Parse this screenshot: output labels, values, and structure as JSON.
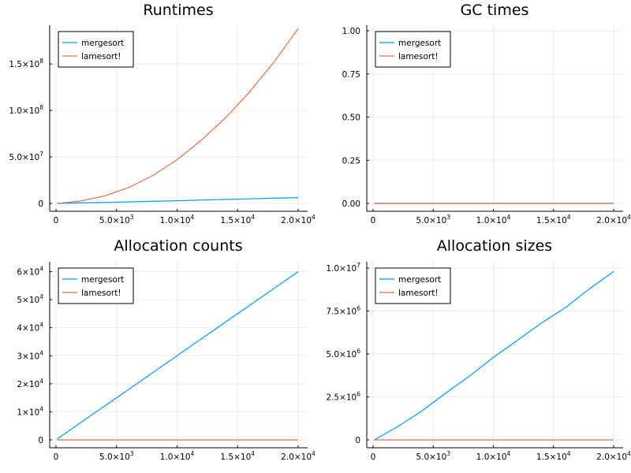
{
  "colors": {
    "mergesort": "#009af9",
    "lamesort": "#e26f46"
  },
  "chart_data": [
    {
      "type": "line",
      "title": "Runtimes",
      "xlabel": "",
      "ylabel": "",
      "xlim": [
        0,
        20000
      ],
      "ylim": [
        0,
        190000000
      ],
      "grid": true,
      "legend_position": "top-left",
      "xticks": [
        {
          "v": 0,
          "m": "0",
          "e": ""
        },
        {
          "v": 5000,
          "m": "5.0×10",
          "e": "3"
        },
        {
          "v": 10000,
          "m": "1.0×10",
          "e": "4"
        },
        {
          "v": 15000,
          "m": "1.5×10",
          "e": "4"
        },
        {
          "v": 20000,
          "m": "2.0×10",
          "e": "4"
        }
      ],
      "yticks": [
        {
          "v": 0,
          "m": "0",
          "e": ""
        },
        {
          "v": 50000000,
          "m": "5.0×10",
          "e": "7"
        },
        {
          "v": 100000000,
          "m": "1.0×10",
          "e": "8"
        },
        {
          "v": 150000000,
          "m": "1.5×10",
          "e": "8"
        }
      ],
      "series": [
        {
          "name": "mergesort",
          "color": "#009af9",
          "x": [
            100,
            2000,
            4000,
            6000,
            8000,
            10000,
            12000,
            14000,
            16000,
            18000,
            20000
          ],
          "y": [
            0,
            500000,
            1000000,
            1600000,
            2200000,
            2900000,
            3600000,
            4200000,
            4900000,
            5600000,
            6300000
          ]
        },
        {
          "name": "lamesort!",
          "color": "#e26f46",
          "x": [
            100,
            2000,
            4000,
            6000,
            8000,
            10000,
            12000,
            14000,
            16000,
            18000,
            20000
          ],
          "y": [
            0,
            2500000,
            8000000,
            17000000,
            30000000,
            47000000,
            68000000,
            92000000,
            120000000,
            152000000,
            188000000
          ]
        }
      ]
    },
    {
      "type": "line",
      "title": "GC times",
      "xlabel": "",
      "ylabel": "",
      "xlim": [
        0,
        20000
      ],
      "ylim": [
        0,
        1
      ],
      "grid": true,
      "legend_position": "top-left",
      "xticks": [
        {
          "v": 0,
          "m": "0",
          "e": ""
        },
        {
          "v": 5000,
          "m": "5.0×10",
          "e": "3"
        },
        {
          "v": 10000,
          "m": "1.0×10",
          "e": "4"
        },
        {
          "v": 15000,
          "m": "1.5×10",
          "e": "4"
        },
        {
          "v": 20000,
          "m": "2.0×10",
          "e": "4"
        }
      ],
      "yticks": [
        {
          "v": 0,
          "m": "0.00",
          "e": ""
        },
        {
          "v": 0.25,
          "m": "0.25",
          "e": ""
        },
        {
          "v": 0.5,
          "m": "0.50",
          "e": ""
        },
        {
          "v": 0.75,
          "m": "0.75",
          "e": ""
        },
        {
          "v": 1,
          "m": "1.00",
          "e": ""
        }
      ],
      "series": [
        {
          "name": "mergesort",
          "color": "#009af9",
          "x": [
            100,
            20000
          ],
          "y": [
            0,
            0
          ]
        },
        {
          "name": "lamesort!",
          "color": "#e26f46",
          "x": [
            100,
            20000
          ],
          "y": [
            0,
            0
          ]
        }
      ]
    },
    {
      "type": "line",
      "title": "Allocation counts",
      "xlabel": "",
      "ylabel": "",
      "xlim": [
        0,
        20000
      ],
      "ylim": [
        0,
        61000
      ],
      "grid": true,
      "legend_position": "top-left",
      "xticks": [
        {
          "v": 0,
          "m": "0",
          "e": ""
        },
        {
          "v": 5000,
          "m": "5.0×10",
          "e": "3"
        },
        {
          "v": 10000,
          "m": "1.0×10",
          "e": "4"
        },
        {
          "v": 15000,
          "m": "1.5×10",
          "e": "4"
        },
        {
          "v": 20000,
          "m": "2.0×10",
          "e": "4"
        }
      ],
      "yticks": [
        {
          "v": 0,
          "m": "0",
          "e": ""
        },
        {
          "v": 10000,
          "m": "1×10",
          "e": "4"
        },
        {
          "v": 20000,
          "m": "2×10",
          "e": "4"
        },
        {
          "v": 30000,
          "m": "3×10",
          "e": "4"
        },
        {
          "v": 40000,
          "m": "4×10",
          "e": "4"
        },
        {
          "v": 50000,
          "m": "5×10",
          "e": "4"
        },
        {
          "v": 60000,
          "m": "6×10",
          "e": "4"
        }
      ],
      "series": [
        {
          "name": "mergesort",
          "color": "#009af9",
          "x": [
            100,
            20000
          ],
          "y": [
            300,
            60000
          ]
        },
        {
          "name": "lamesort!",
          "color": "#e26f46",
          "x": [
            100,
            20000
          ],
          "y": [
            0,
            0
          ]
        }
      ]
    },
    {
      "type": "line",
      "title": "Allocation sizes",
      "xlabel": "",
      "ylabel": "",
      "xlim": [
        0,
        20000
      ],
      "ylim": [
        0,
        10000000
      ],
      "grid": true,
      "legend_position": "top-left",
      "xticks": [
        {
          "v": 0,
          "m": "0",
          "e": ""
        },
        {
          "v": 5000,
          "m": "5.0×10",
          "e": "3"
        },
        {
          "v": 10000,
          "m": "1.0×10",
          "e": "4"
        },
        {
          "v": 15000,
          "m": "1.5×10",
          "e": "4"
        },
        {
          "v": 20000,
          "m": "2.0×10",
          "e": "4"
        }
      ],
      "yticks": [
        {
          "v": 0,
          "m": "0",
          "e": ""
        },
        {
          "v": 2500000,
          "m": "2.5×10",
          "e": "6"
        },
        {
          "v": 5000000,
          "m": "5.0×10",
          "e": "6"
        },
        {
          "v": 7500000,
          "m": "7.5×10",
          "e": "6"
        },
        {
          "v": 10000000,
          "m": "1.0×10",
          "e": "7"
        }
      ],
      "series": [
        {
          "name": "mergesort",
          "color": "#009af9",
          "x": [
            100,
            2000,
            4000,
            6000,
            8000,
            10000,
            12000,
            14000,
            16000,
            18000,
            20000
          ],
          "y": [
            0,
            750000,
            1650000,
            2700000,
            3700000,
            4800000,
            5800000,
            6800000,
            7700000,
            8800000,
            9800000
          ]
        },
        {
          "name": "lamesort!",
          "color": "#e26f46",
          "x": [
            100,
            20000
          ],
          "y": [
            0,
            0
          ]
        }
      ]
    }
  ]
}
